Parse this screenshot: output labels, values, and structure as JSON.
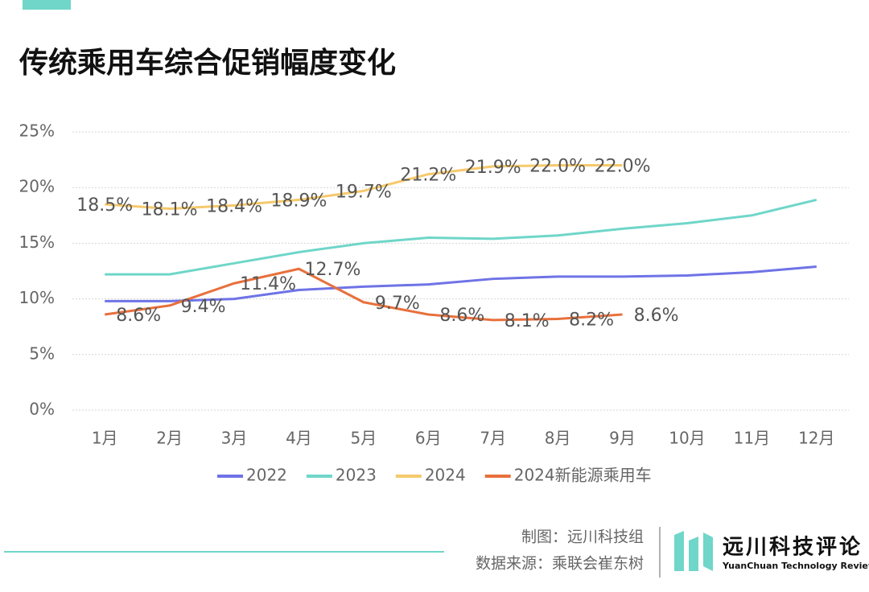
{
  "chart_data": {
    "type": "line",
    "title": "传统乘用车综合促销幅度变化",
    "categories": [
      "1月",
      "2月",
      "3月",
      "4月",
      "5月",
      "6月",
      "7月",
      "8月",
      "9月",
      "10月",
      "11月",
      "12月"
    ],
    "series": [
      {
        "name": "2022",
        "color": "#6f73e6",
        "values": [
          9.8,
          9.8,
          10.0,
          10.8,
          11.1,
          11.3,
          11.8,
          12.0,
          12.0,
          12.1,
          12.4,
          12.9
        ]
      },
      {
        "name": "2023",
        "color": "#6fd6c9",
        "values": [
          12.2,
          12.2,
          13.2,
          14.2,
          15.0,
          15.5,
          15.4,
          15.7,
          16.3,
          16.8,
          17.5,
          18.9
        ]
      },
      {
        "name": "2024",
        "color": "#f5c96c",
        "values": [
          18.5,
          18.1,
          18.4,
          18.9,
          19.7,
          21.2,
          21.9,
          22.0,
          22.0,
          null,
          null,
          null
        ],
        "value_labels": [
          "18.5%",
          "18.1%",
          "18.4%",
          "18.9%",
          "19.7%",
          "21.2%",
          "21.9%",
          "22.0%",
          "22.0%",
          null,
          null,
          null
        ]
      },
      {
        "name": "2024新能源乘用车",
        "color": "#e8703c",
        "values": [
          8.6,
          9.4,
          11.4,
          12.7,
          9.7,
          8.6,
          8.1,
          8.2,
          8.6,
          null,
          null,
          null
        ],
        "value_labels": [
          "8.6%",
          "9.4%",
          "11.4%",
          "12.7%",
          "9.7%",
          "8.6%",
          "8.1%",
          "8.2%",
          "8.6%",
          null,
          null,
          null
        ]
      }
    ],
    "ylim": [
      0,
      25
    ],
    "yticks": [
      {
        "value": 0,
        "label": "0%"
      },
      {
        "value": 5,
        "label": "5%"
      },
      {
        "value": 10,
        "label": "10%"
      },
      {
        "value": 15,
        "label": "15%"
      },
      {
        "value": 20,
        "label": "20%"
      },
      {
        "value": 25,
        "label": "25%"
      }
    ],
    "grid": true,
    "legend": "bottom"
  },
  "footer": {
    "credit": "制图：远川科技组",
    "source": "数据来源：乘联会崔东树",
    "brand": "远川科技评论",
    "brand_en": "YuanChuan Technology Review"
  }
}
